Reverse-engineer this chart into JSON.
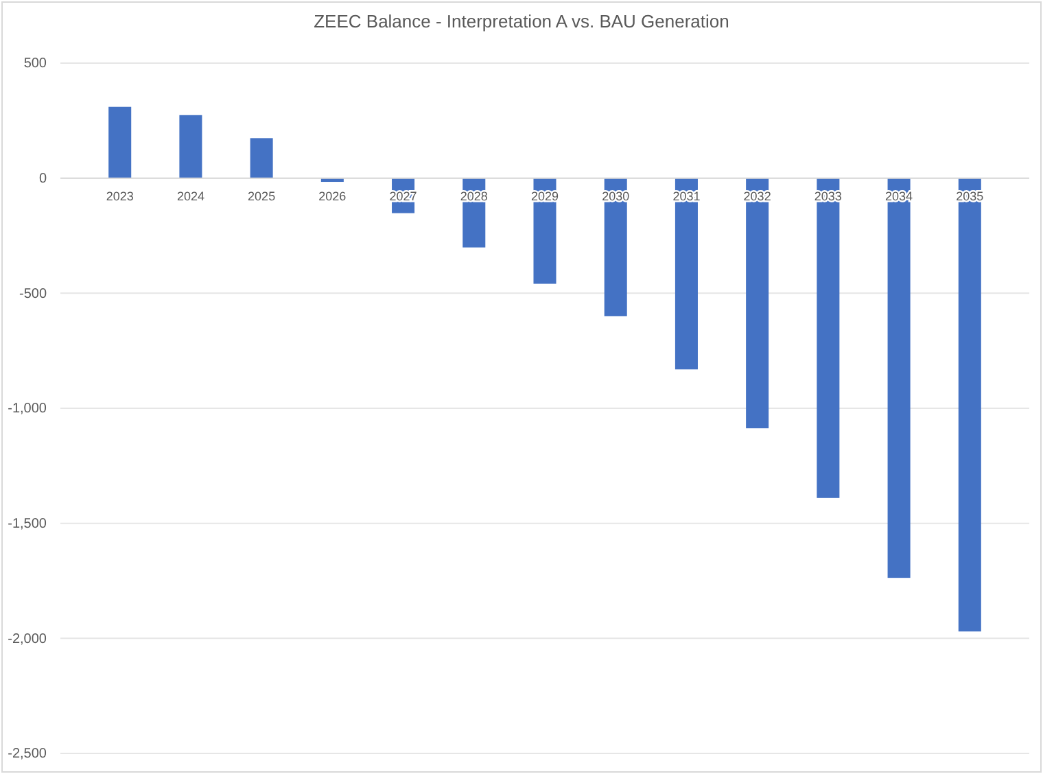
{
  "chart_data": {
    "type": "bar",
    "title": "ZEEC Balance - Interpretation A vs. BAU Generation",
    "categories": [
      "2023",
      "2024",
      "2025",
      "2026",
      "2027",
      "2028",
      "2029",
      "2030",
      "2031",
      "2032",
      "2033",
      "2034",
      "2035"
    ],
    "values": [
      310,
      274,
      174,
      -16,
      -152,
      -301,
      -459,
      -600,
      -831,
      -1087,
      -1390,
      -1737,
      -1970
    ],
    "color": "#4472c4",
    "ylim": [
      -2500,
      500
    ],
    "yticks": [
      {
        "value": -2500,
        "label": "-2,500"
      },
      {
        "value": -2000,
        "label": "-2,000"
      },
      {
        "value": -1500,
        "label": "-1,500"
      },
      {
        "value": -1000,
        "label": "-1,000"
      },
      {
        "value": -500,
        "label": "-500"
      },
      0,
      500
    ],
    "grid": "y"
  }
}
